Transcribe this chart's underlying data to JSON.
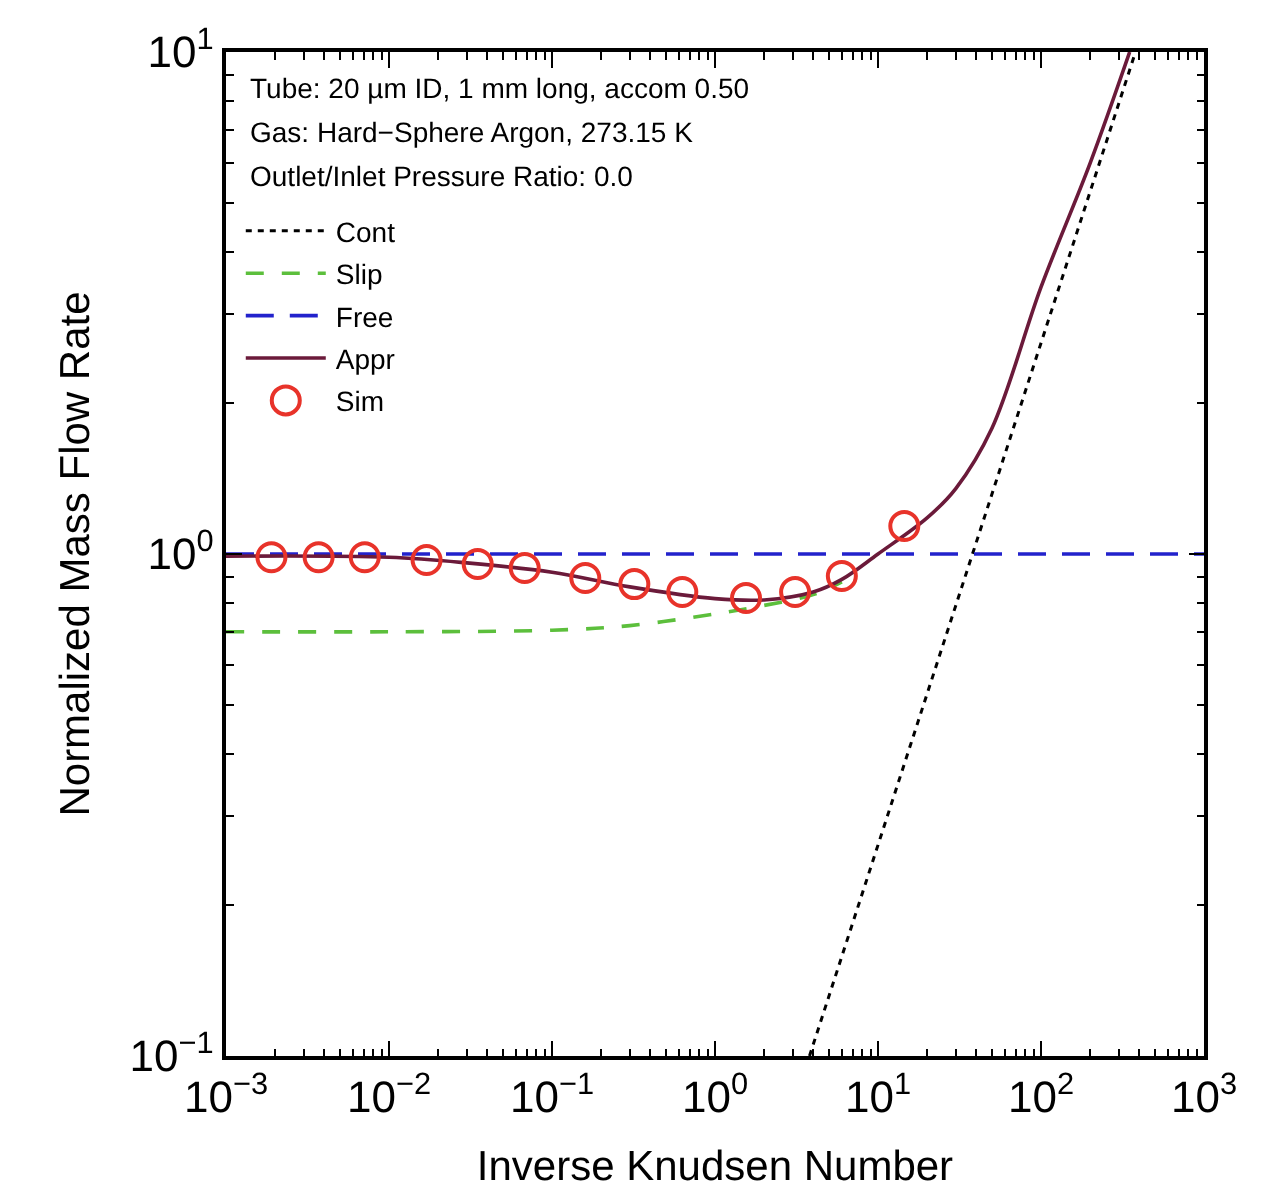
{
  "chart_data": {
    "type": "line",
    "xlabel": "Inverse Knudsen Number",
    "ylabel": "Normalized Mass Flow Rate",
    "annotations": [
      "Tube: 20 µm ID, 1 mm long, accom 0.50",
      "Gas: Hard−Sphere Argon, 273.15 K",
      "Outlet/Inlet Pressure Ratio: 0.0"
    ],
    "log": "xy",
    "legend": "top left",
    "xlim": [
      0.001,
      1000
    ],
    "ylim": [
      0.1,
      10
    ],
    "xticks": [
      {
        "value": 0.001,
        "label": "10$^{−3}$"
      },
      {
        "value": 0.01,
        "label": "10$^{−2}$"
      },
      {
        "value": 0.1,
        "label": "10$^{−1}$"
      },
      {
        "value": 1,
        "label": "10$^{0}$"
      },
      {
        "value": 10,
        "label": "10$^{1}$"
      },
      {
        "value": 100,
        "label": "10$^{2}$"
      },
      {
        "value": 1000,
        "label": "10$^{3}$"
      }
    ],
    "yticks": [
      {
        "value": 0.1,
        "label": "10$^{−1}$"
      },
      {
        "value": 1,
        "label": "10$^{0}$"
      },
      {
        "value": 10,
        "label": "10$^{1}$"
      }
    ],
    "series": [
      {
        "name": "Cont",
        "color": "#000000",
        "line_style": "dotted",
        "marker": "none",
        "x": [
          3.8,
          380
        ],
        "values": [
          0.1,
          10
        ]
      },
      {
        "name": "Slip",
        "color": "#5cbf3c",
        "line_style": "dashed",
        "marker": "none",
        "x": [
          0.001,
          0.01,
          0.1,
          0.3,
          1,
          2,
          4,
          6
        ],
        "values": [
          0.7,
          0.7,
          0.705,
          0.72,
          0.76,
          0.79,
          0.83,
          0.88
        ]
      },
      {
        "name": "Free",
        "color": "#2222cc",
        "line_style": "dashed",
        "marker": "none",
        "x": [
          0.001,
          1000
        ],
        "values": [
          1,
          1
        ]
      },
      {
        "name": "Appr",
        "color": "#6b1a3a",
        "line_style": "solid",
        "marker": "none",
        "x": [
          0.001,
          0.01,
          0.03,
          0.1,
          0.3,
          1,
          2,
          4,
          6,
          10,
          20,
          30,
          50,
          100,
          200,
          350
        ],
        "values": [
          0.99,
          0.985,
          0.96,
          0.92,
          0.86,
          0.815,
          0.81,
          0.84,
          0.89,
          1.0,
          1.18,
          1.35,
          1.78,
          3.4,
          6.0,
          10
        ]
      },
      {
        "name": "Sim",
        "type": "scatter",
        "color": "#e8332a",
        "marker": "circle",
        "x": [
          0.0019,
          0.0037,
          0.0071,
          0.017,
          0.035,
          0.068,
          0.16,
          0.32,
          0.63,
          1.55,
          3.1,
          6.0,
          14.5
        ],
        "values": [
          0.985,
          0.985,
          0.985,
          0.973,
          0.955,
          0.938,
          0.896,
          0.871,
          0.84,
          0.817,
          0.84,
          0.904,
          1.137
        ]
      }
    ]
  }
}
